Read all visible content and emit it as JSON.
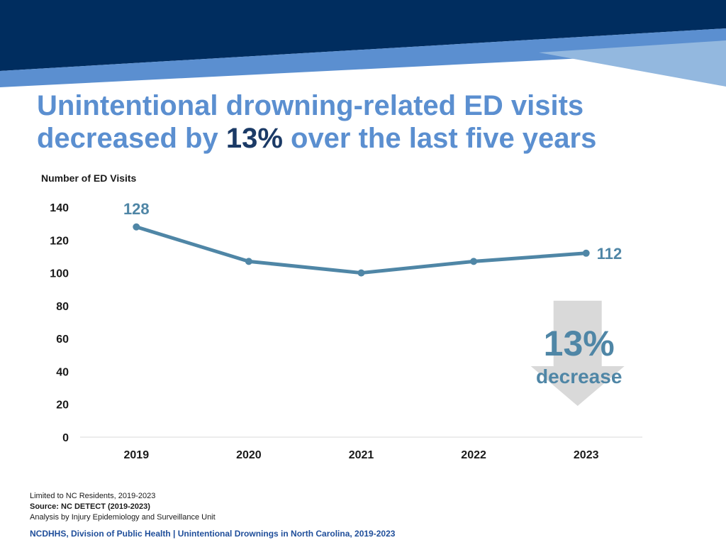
{
  "title": {
    "before": "Unintentional drowning-related ED visits decreased by ",
    "highlight": "13%",
    "after": " over the last five years"
  },
  "colors": {
    "navy": "#002d5f",
    "blue_band": "#5b8fd0",
    "light_band": "#93b8df",
    "line": "#4f86a6",
    "arrow": "#d9d9d9"
  },
  "chart_data": {
    "type": "line",
    "x": [
      "2019",
      "2020",
      "2021",
      "2022",
      "2023"
    ],
    "series": [
      {
        "values": [
          128,
          107,
          100,
          107,
          112
        ]
      }
    ],
    "data_labels": [
      "128",
      "",
      "",
      "",
      "112"
    ],
    "ylabel": "Number of ED Visits",
    "ylim": [
      0,
      140
    ],
    "yticks": [
      0,
      20,
      40,
      60,
      80,
      100,
      120,
      140
    ],
    "grid": false,
    "callout": {
      "value": "13%",
      "label": "decrease"
    }
  },
  "notes": {
    "line1": "Limited to NC Residents, 2019-2023",
    "line2": "Source: NC DETECT (2019-2023)",
    "line3": "Analysis by Injury Epidemiology and Surveillance Unit"
  },
  "footer": "NCDHHS, Division of Public Health | Unintentional Drownings in North Carolina, 2019-2023"
}
